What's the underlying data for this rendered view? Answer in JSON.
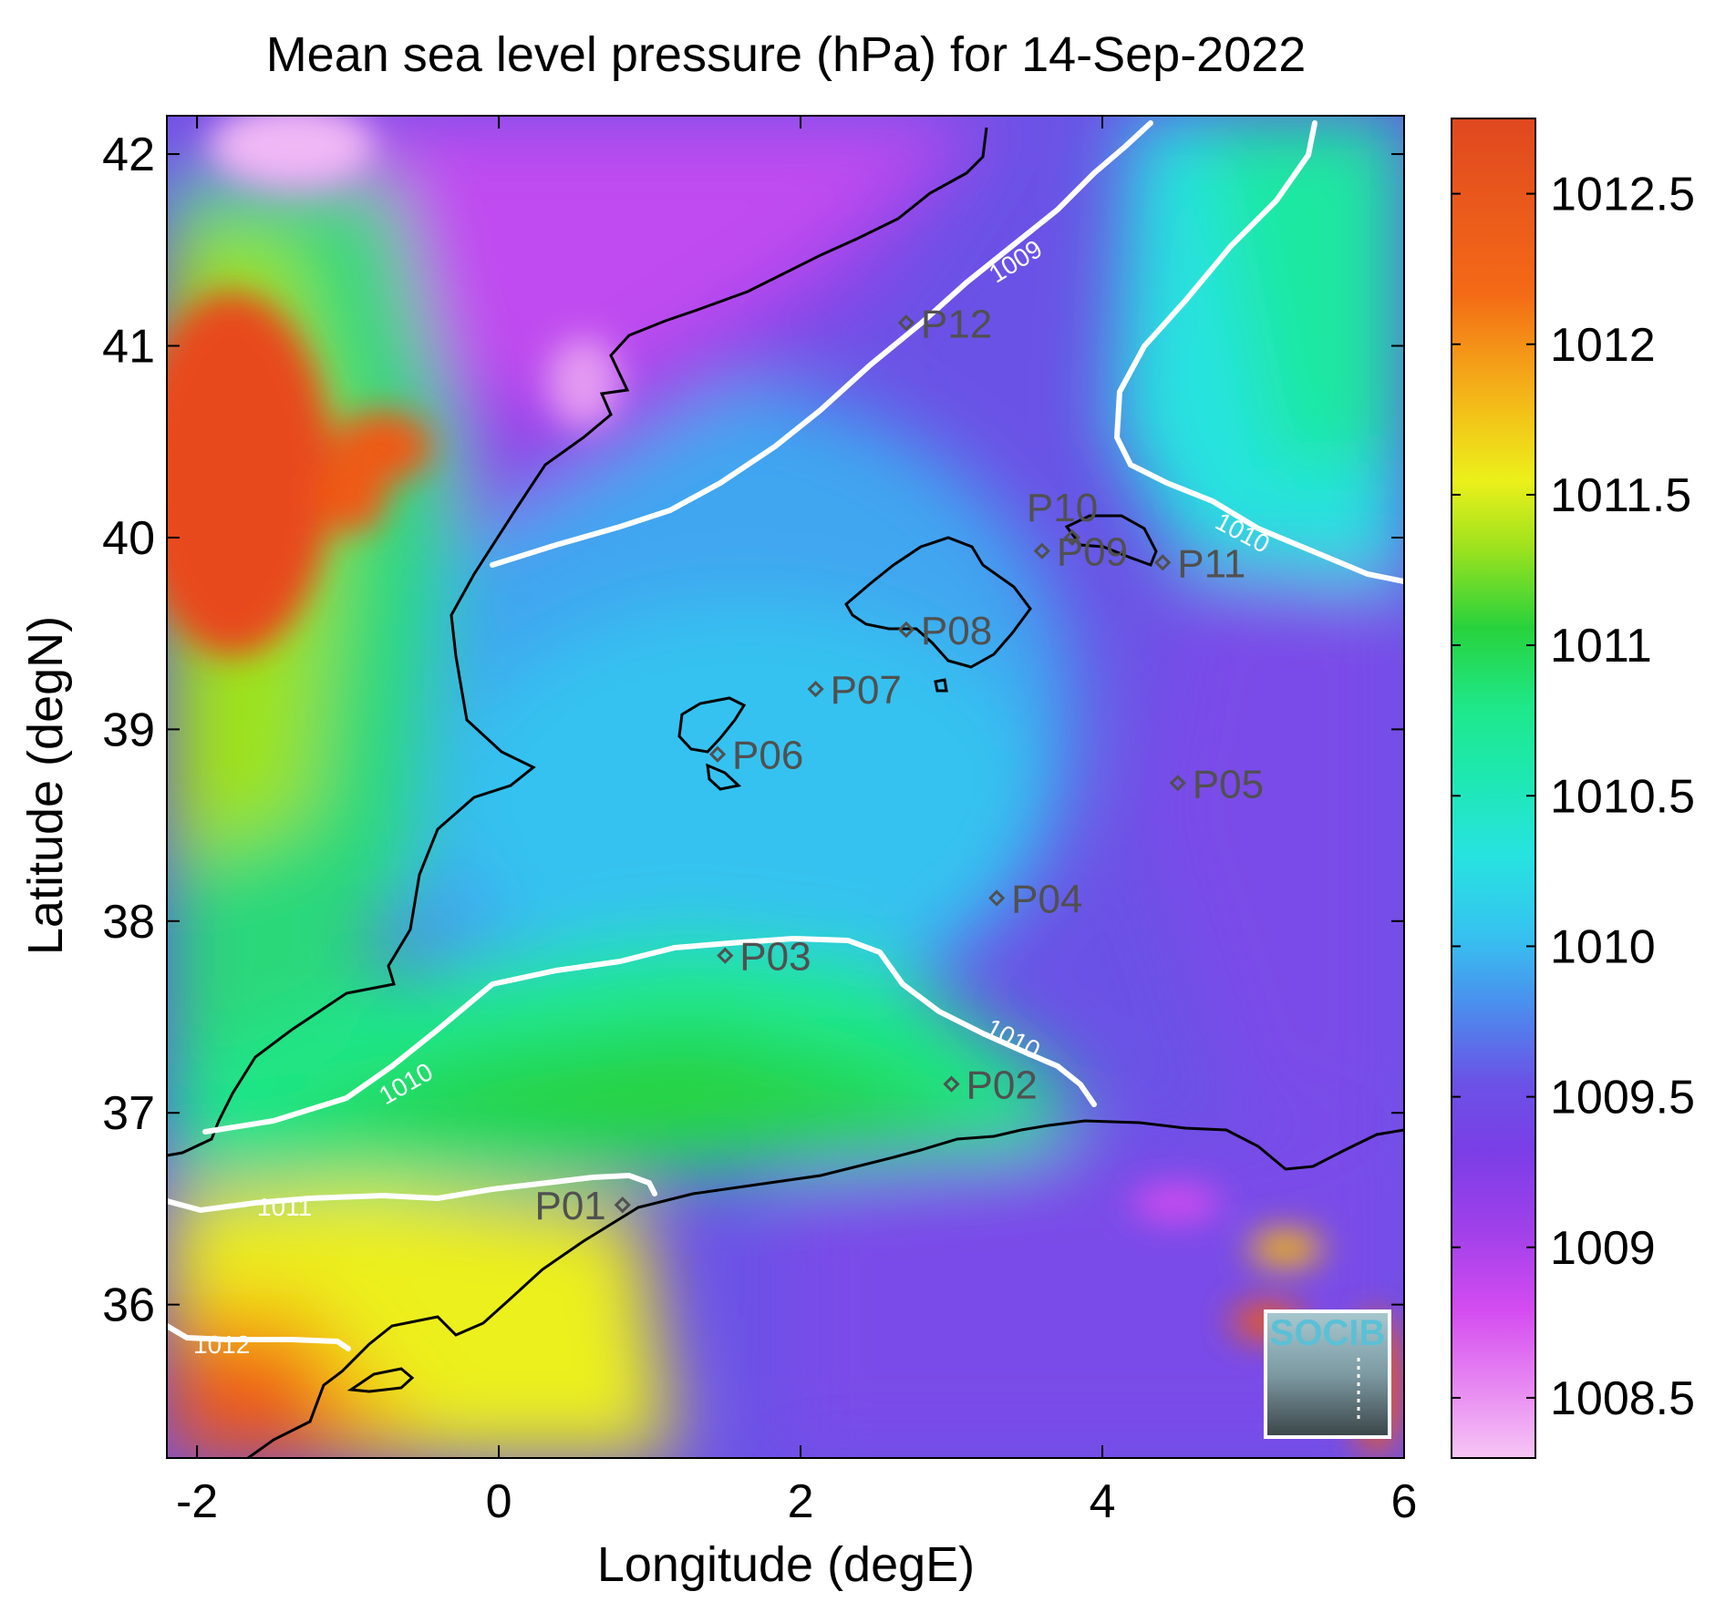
{
  "title": "Mean sea level pressure (hPa) for 14-Sep-2022",
  "x_axis": {
    "label": "Longitude (degE)",
    "range": [
      -2.2,
      6.0
    ],
    "ticks": [
      -2,
      0,
      2,
      4,
      6
    ],
    "tick_labels": [
      "-2",
      "0",
      "2",
      "4",
      "6"
    ]
  },
  "y_axis": {
    "label": "Latitude (degN)",
    "range": [
      35.2,
      42.2
    ],
    "ticks": [
      36,
      37,
      38,
      39,
      40,
      41,
      42
    ],
    "tick_labels": [
      "36",
      "37",
      "38",
      "39",
      "40",
      "41",
      "42"
    ]
  },
  "colorbar": {
    "range": [
      1008.3,
      1012.75
    ],
    "ticks": [
      1008.5,
      1009,
      1009.5,
      1010,
      1010.5,
      1011,
      1011.5,
      1012,
      1012.5
    ],
    "tick_labels": [
      "1008.5",
      "1009",
      "1009.5",
      "1010",
      "1010.5",
      "1011",
      "1011.5",
      "1012",
      "1012.5"
    ],
    "colormap": [
      "#f7c6f5",
      "#d44cf0",
      "#8a44e8",
      "#6b52e6",
      "#3fa6f0",
      "#27e3e0",
      "#1ee88a",
      "#28d23c",
      "#9ee21e",
      "#ecf01a",
      "#f4b818",
      "#f46a16",
      "#e04820"
    ]
  },
  "stations": [
    {
      "id": "P01",
      "lon": 0.82,
      "lat": 36.52
    },
    {
      "id": "P02",
      "lon": 3.0,
      "lat": 37.15
    },
    {
      "id": "P03",
      "lon": 1.5,
      "lat": 37.82
    },
    {
      "id": "P04",
      "lon": 3.3,
      "lat": 38.12
    },
    {
      "id": "P05",
      "lon": 4.5,
      "lat": 38.72
    },
    {
      "id": "P06",
      "lon": 1.45,
      "lat": 38.87
    },
    {
      "id": "P07",
      "lon": 2.1,
      "lat": 39.21
    },
    {
      "id": "P08",
      "lon": 2.7,
      "lat": 39.52
    },
    {
      "id": "P09",
      "lon": 3.6,
      "lat": 39.93
    },
    {
      "id": "P10",
      "lon": 3.8,
      "lat": 40.0
    },
    {
      "id": "P11",
      "lon": 4.4,
      "lat": 39.87
    },
    {
      "id": "P12",
      "lon": 2.7,
      "lat": 41.12
    }
  ],
  "contour_labels": [
    "1009",
    "1010",
    "1010",
    "1010",
    "1011",
    "1012"
  ],
  "logo": {
    "text": "SOCIB"
  },
  "colors": {
    "coastline": "#000000",
    "contour": "#ffffff",
    "station": "#505050",
    "logo_text": "#5bc0d6"
  }
}
